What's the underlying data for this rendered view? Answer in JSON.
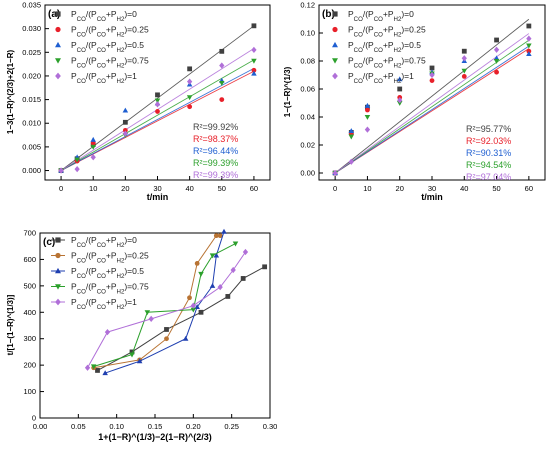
{
  "chart_data": [
    {
      "type": "scatter",
      "panel_label": "(a)",
      "xlabel": "t/min",
      "ylabel": "1−3(1−R)^(2/3)+2(1−R)",
      "xlim": [
        -5,
        65
      ],
      "ylim": [
        -0.002,
        0.035
      ],
      "xticks": [
        "0",
        "10",
        "20",
        "30",
        "40",
        "50",
        "60"
      ],
      "yticks": [
        "0.000",
        "0.005",
        "0.010",
        "0.015",
        "0.020",
        "0.025",
        "0.030",
        "0.035"
      ],
      "legend_position": "top-left",
      "series": [
        {
          "name": "P_CO/(P_CO+P_H2)=0",
          "color": "#404040",
          "marker": "square",
          "x": [
            0,
            5,
            10,
            20,
            30,
            40,
            50,
            60
          ],
          "y": [
            0.0,
            0.0025,
            0.0055,
            0.0102,
            0.016,
            0.0215,
            0.0252,
            0.0306
          ],
          "fit_slope": 0.00051,
          "r2": "R²=99.92%"
        },
        {
          "name": "P_CO/(P_CO+P_H2)=0.25",
          "color": "#e8202a",
          "marker": "circle",
          "x": [
            0,
            5,
            10,
            20,
            30,
            40,
            50,
            60
          ],
          "y": [
            0.0,
            0.002,
            0.0058,
            0.0085,
            0.0125,
            0.0135,
            0.015,
            0.0212
          ],
          "fit_slope": 0.00035,
          "r2": "R²=98.37%"
        },
        {
          "name": "P_CO/(P_CO+P_H2)=0.5",
          "color": "#1f5fd1",
          "marker": "triangle-up",
          "x": [
            0,
            5,
            10,
            20,
            30,
            40,
            50,
            60
          ],
          "y": [
            0.0,
            0.0028,
            0.0065,
            0.0127,
            0.0142,
            0.0182,
            0.019,
            0.0205
          ],
          "fit_slope": 0.00036,
          "r2": "R²=96.44%"
        },
        {
          "name": "P_CO/(P_CO+P_H2)=0.75",
          "color": "#2ca02c",
          "marker": "triangle-down",
          "x": [
            0,
            5,
            10,
            20,
            30,
            40,
            50,
            60
          ],
          "y": [
            0.0,
            0.0023,
            0.005,
            0.0075,
            0.0148,
            0.0155,
            0.0185,
            0.0232
          ],
          "fit_slope": 0.00039,
          "r2": "R²=99.39%"
        },
        {
          "name": "P_CO/(P_CO+P_H2)=1",
          "color": "#b06fd8",
          "marker": "diamond",
          "x": [
            0,
            5,
            10,
            20,
            30,
            40,
            50,
            60
          ],
          "y": [
            0.0,
            0.0003,
            0.0028,
            0.0078,
            0.014,
            0.0188,
            0.0222,
            0.0255
          ],
          "fit_slope": 0.00043,
          "r2": "R²=99.39%"
        }
      ]
    },
    {
      "type": "scatter",
      "panel_label": "(b)",
      "xlabel": "t/min",
      "ylabel": "1−(1−R)^(1/3)",
      "xlim": [
        -5,
        65
      ],
      "ylim": [
        -0.005,
        0.12
      ],
      "xticks": [
        "0",
        "10",
        "20",
        "30",
        "40",
        "50",
        "60"
      ],
      "yticks": [
        "0.00",
        "0.02",
        "0.04",
        "0.06",
        "0.08",
        "0.10",
        "0.12"
      ],
      "legend_position": "top-left",
      "series": [
        {
          "name": "P_CO/(P_CO+P_H2)=0",
          "color": "#404040",
          "marker": "square",
          "x": [
            0,
            5,
            10,
            20,
            30,
            40,
            50,
            60
          ],
          "y": [
            0.0,
            0.029,
            0.047,
            0.06,
            0.075,
            0.087,
            0.095,
            0.105
          ],
          "fit_slope": 0.00183,
          "r2": "R²=95.77%"
        },
        {
          "name": "P_CO/(P_CO+P_H2)=0.25",
          "color": "#e8202a",
          "marker": "circle",
          "x": [
            0,
            5,
            10,
            20,
            30,
            40,
            50,
            60
          ],
          "y": [
            0.0,
            0.028,
            0.045,
            0.054,
            0.066,
            0.069,
            0.072,
            0.087
          ],
          "fit_slope": 0.00148,
          "r2": "R²=92.03%"
        },
        {
          "name": "P_CO/(P_CO+P_H2)=0.5",
          "color": "#1f5fd1",
          "marker": "triangle-up",
          "x": [
            0,
            5,
            10,
            20,
            30,
            40,
            50,
            60
          ],
          "y": [
            0.0,
            0.03,
            0.048,
            0.067,
            0.072,
            0.08,
            0.082,
            0.085
          ],
          "fit_slope": 0.00151,
          "r2": "R²=90.31%"
        },
        {
          "name": "P_CO/(P_CO+P_H2)=0.75",
          "color": "#2ca02c",
          "marker": "triangle-down",
          "x": [
            0,
            5,
            10,
            20,
            30,
            40,
            50,
            60
          ],
          "y": [
            0.0,
            0.026,
            0.04,
            0.05,
            0.071,
            0.073,
            0.08,
            0.091
          ],
          "fit_slope": 0.00158,
          "r2": "R²=94.54%"
        },
        {
          "name": "P_CO/(P_CO+P_H2)=1",
          "color": "#b06fd8",
          "marker": "diamond",
          "x": [
            0,
            5,
            10,
            20,
            30,
            40,
            50,
            60
          ],
          "y": [
            0.0,
            0.008,
            0.031,
            0.052,
            0.07,
            0.082,
            0.088,
            0.096
          ],
          "fit_slope": 0.00166,
          "r2": "R²=97.04%"
        }
      ]
    },
    {
      "type": "line",
      "panel_label": "(c)",
      "xlabel": "1+(1−R)^(1/3)−2(1−R)^(2/3)",
      "ylabel": "t/[1−(1−R)^(1/3)]",
      "xlim": [
        0.0,
        0.3
      ],
      "ylim": [
        0,
        700
      ],
      "xticks": [
        "0.00",
        "0.05",
        "0.10",
        "0.15",
        "0.20",
        "0.25",
        "0.30"
      ],
      "yticks": [
        "0",
        "100",
        "200",
        "300",
        "400",
        "500",
        "600",
        "700"
      ],
      "legend_position": "top-left",
      "series": [
        {
          "name": "P_CO/(P_CO+P_H2)=0",
          "color": "#404040",
          "marker": "square",
          "x": [
            0.075,
            0.12,
            0.165,
            0.21,
            0.245,
            0.265,
            0.293
          ],
          "y": [
            180,
            250,
            335,
            400,
            460,
            528,
            572
          ]
        },
        {
          "name": "P_CO/(P_CO+P_H2)=0.25",
          "color": "#b87333",
          "marker": "circle",
          "x": [
            0.07,
            0.13,
            0.165,
            0.195,
            0.205,
            0.23,
            0.235
          ],
          "y": [
            190,
            220,
            300,
            455,
            585,
            690,
            690
          ]
        },
        {
          "name": "P_CO/(P_CO+P_H2)=0.5",
          "color": "#1f3fb0",
          "marker": "triangle-up",
          "x": [
            0.085,
            0.13,
            0.19,
            0.205,
            0.225,
            0.23,
            0.24
          ],
          "y": [
            170,
            215,
            300,
            420,
            500,
            615,
            705
          ]
        },
        {
          "name": "P_CO/(P_CO+P_H2)=0.75",
          "color": "#2ca02c",
          "marker": "triangle-down",
          "x": [
            0.07,
            0.12,
            0.14,
            0.2,
            0.21,
            0.225,
            0.255
          ],
          "y": [
            195,
            240,
            400,
            410,
            545,
            615,
            660
          ]
        },
        {
          "name": "P_CO/(P_CO+P_H2)=1",
          "color": "#b06fd8",
          "marker": "diamond",
          "x": [
            0.062,
            0.088,
            0.145,
            0.2,
            0.235,
            0.252,
            0.268
          ],
          "y": [
            190,
            325,
            375,
            425,
            495,
            560,
            628
          ]
        }
      ]
    }
  ]
}
